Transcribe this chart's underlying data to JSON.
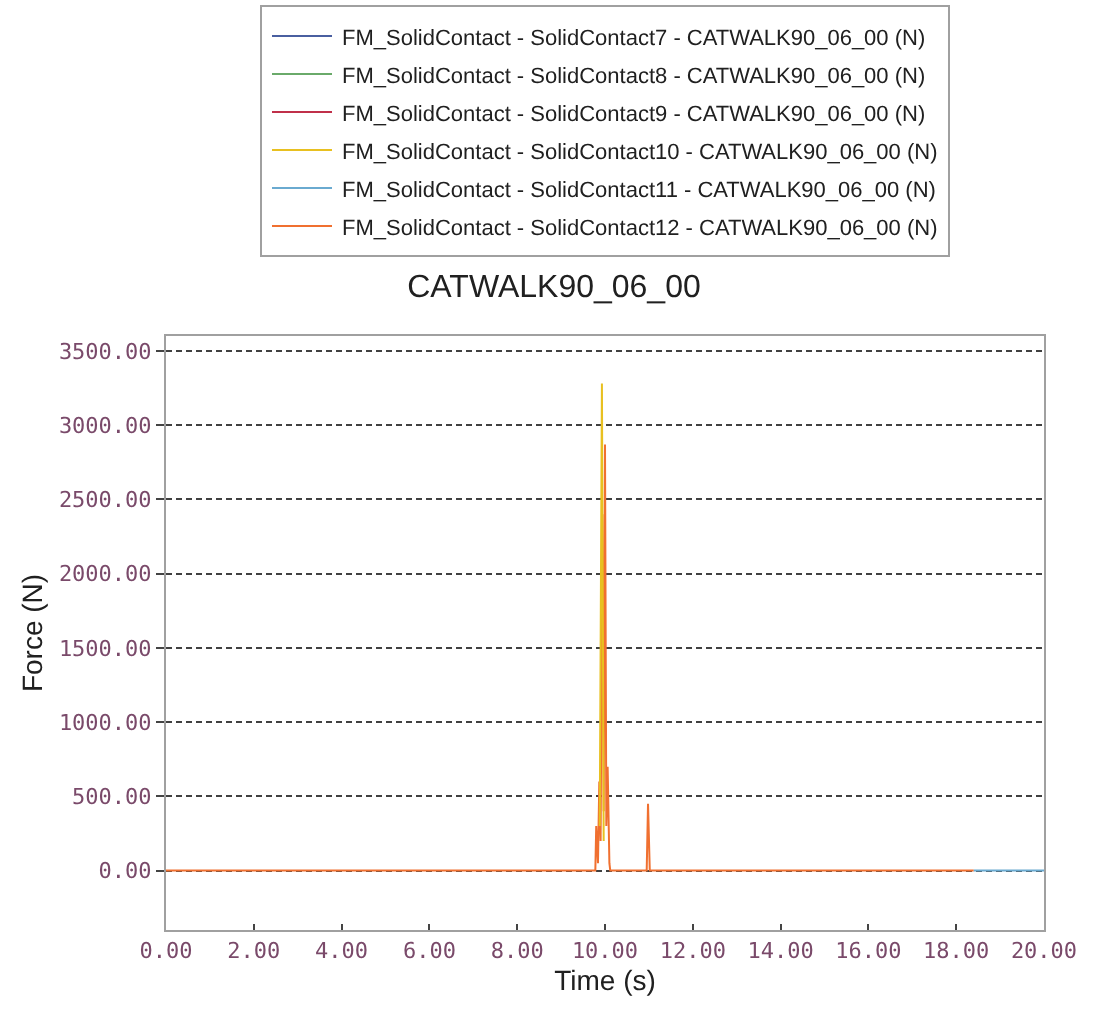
{
  "chart_data": {
    "type": "line",
    "title": "CATWALK90_06_00",
    "xlabel": "Time (s)",
    "ylabel": "Force (N)",
    "xlim": [
      0,
      20
    ],
    "xticks": [
      {
        "value": 0,
        "label": "0.00"
      },
      {
        "value": 2,
        "label": "2.00"
      },
      {
        "value": 4,
        "label": "4.00"
      },
      {
        "value": 6,
        "label": "6.00"
      },
      {
        "value": 8,
        "label": "8.00"
      },
      {
        "value": 10,
        "label": "10.00"
      },
      {
        "value": 12,
        "label": "12.00"
      },
      {
        "value": 14,
        "label": "14.00"
      },
      {
        "value": 16,
        "label": "16.00"
      },
      {
        "value": 18,
        "label": "18.00"
      },
      {
        "value": 20,
        "label": "20.00"
      }
    ],
    "ylim": [
      -400,
      3600
    ],
    "yticks": [
      {
        "value": 0,
        "label": "0.00"
      },
      {
        "value": 500,
        "label": "500.00"
      },
      {
        "value": 1000,
        "label": "1000.00"
      },
      {
        "value": 1500,
        "label": "1500.00"
      },
      {
        "value": 2000,
        "label": "2000.00"
      },
      {
        "value": 2500,
        "label": "2500.00"
      },
      {
        "value": 3000,
        "label": "3000.00"
      },
      {
        "value": 3500,
        "label": "3500.00"
      }
    ],
    "grid": "y",
    "legend": "top",
    "marker": "none",
    "line_style": "solid",
    "series": [
      {
        "name": "FM_SolidContact - SolidContact7 - CATWALK90_06_00 (N)",
        "color": "#4a5fa0"
      },
      {
        "name": "FM_SolidContact - SolidContact8 - CATWALK90_06_00 (N)",
        "color": "#6aaa6a"
      },
      {
        "name": "FM_SolidContact - SolidContact9 - CATWALK90_06_00 (N)",
        "color": "#c0304a"
      },
      {
        "name": "FM_SolidContact - SolidContact10 - CATWALK90_06_00 (N)",
        "color": "#e8c020",
        "x": [
          9.88,
          9.93,
          9.97
        ],
        "values": [
          300,
          3280,
          200
        ]
      },
      {
        "name": "FM_SolidContact - SolidContact11 - CATWALK90_06_00 (N)",
        "color": "#6aaad0",
        "x": [
          18.4,
          20
        ],
        "values": [
          0,
          0
        ]
      },
      {
        "name": "FM_SolidContact - SolidContact12 - CATWALK90_06_00 (N)",
        "color": "#f07030",
        "x": [
          0,
          9.78,
          9.8,
          9.84,
          9.87,
          9.9,
          9.94,
          9.97,
          10.0,
          10.03,
          10.06,
          10.1,
          10.12,
          10.95,
          10.98,
          11.02,
          18.4
        ],
        "values": [
          0,
          0,
          300,
          50,
          600,
          200,
          2400,
          400,
          2870,
          300,
          700,
          50,
          0,
          0,
          450,
          0,
          0
        ]
      }
    ]
  }
}
